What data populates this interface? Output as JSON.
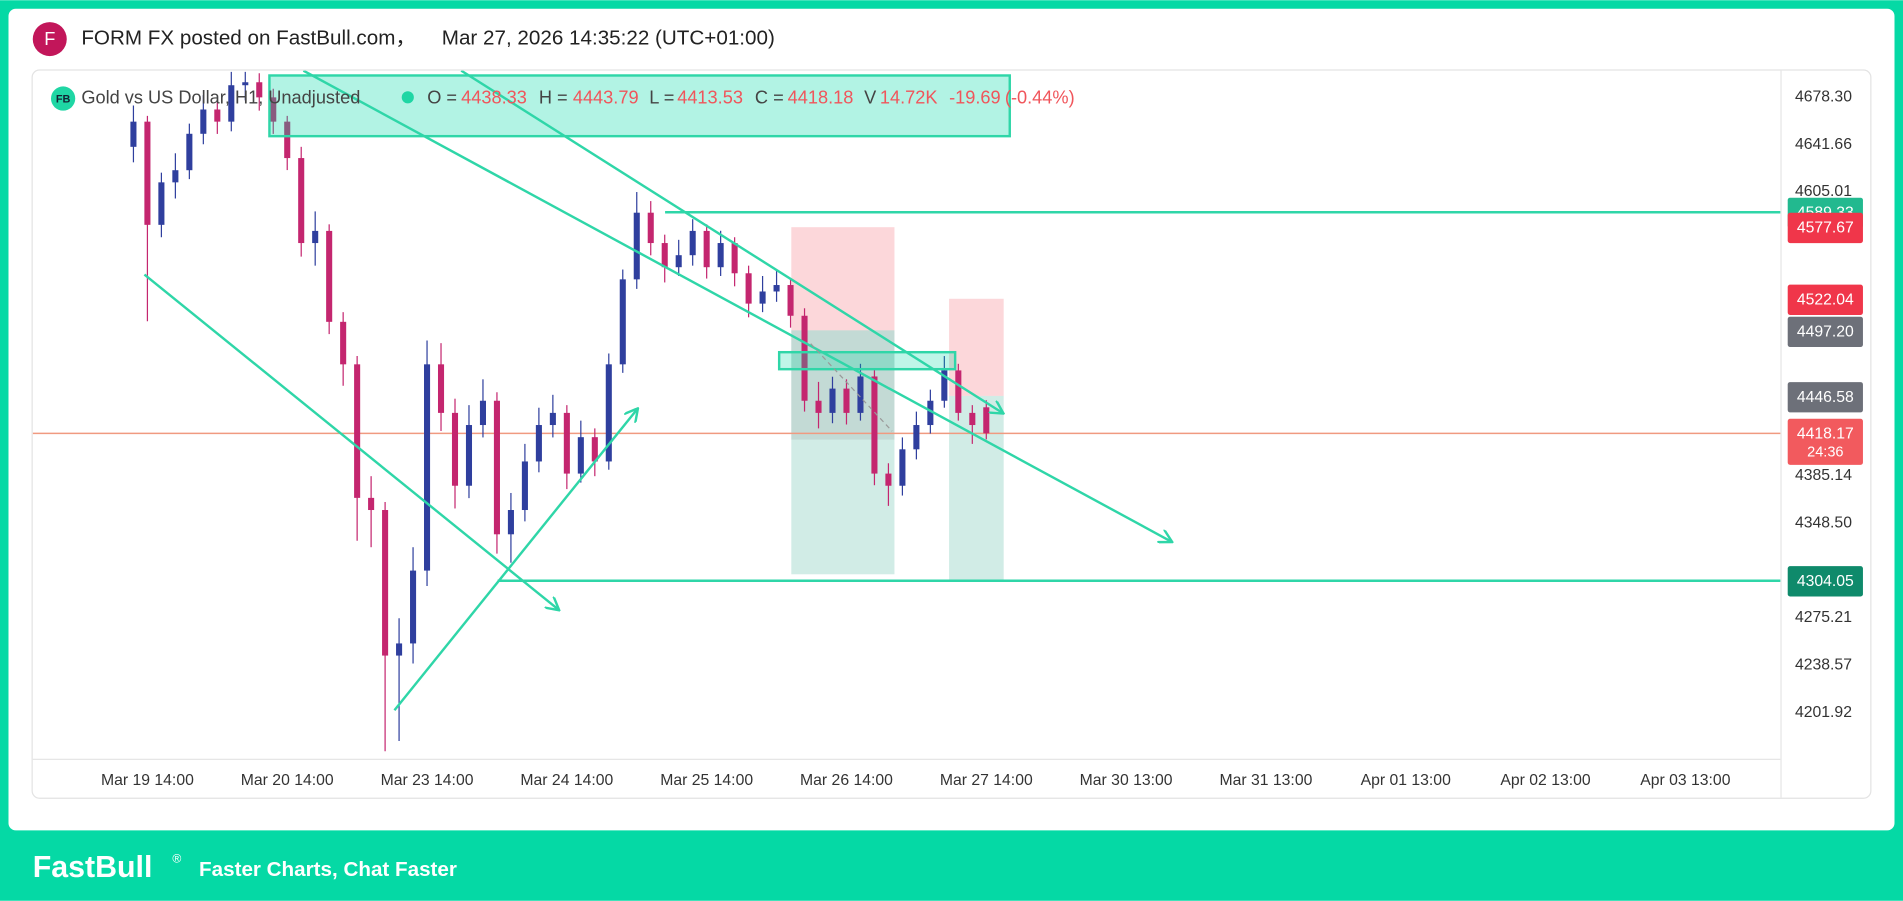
{
  "header": {
    "avatar": "F",
    "author_text": "FORM FX posted on FastBull.com，",
    "timestamp": "Mar 27, 2026 14:35:22 (UTC+01:00)"
  },
  "chart_data": {
    "type": "candlestick",
    "legend": {
      "logo": "FB",
      "symbol": "Gold vs US Dollar, H1, Unadjusted",
      "o_label": "O =",
      "open": 4438.33,
      "h_label": "H =",
      "high": 4443.79,
      "l_label": "L =",
      "low": 4413.53,
      "c_label": "C =",
      "close": 4418.18,
      "v_label": "V",
      "volume": "14.72K",
      "change": -19.69,
      "change_pct": "(-0.44%)"
    },
    "up_color": "#2f3f9e",
    "down_color": "#c4266f",
    "x": [
      -0.1,
      0,
      0.1,
      0.2,
      0.3,
      0.4,
      0.5,
      0.6,
      0.7,
      0.8,
      0.9,
      1,
      1.1,
      1.2,
      1.3,
      1.4,
      1.5,
      1.6,
      1.7,
      1.8,
      1.9,
      2,
      2.1,
      2.2,
      2.3,
      2.4,
      2.5,
      2.6,
      2.7,
      2.8,
      2.9,
      3,
      3.1,
      3.2,
      3.3,
      3.4,
      3.5,
      3.6,
      3.7,
      3.8,
      3.9,
      4,
      4.1,
      4.2,
      4.3,
      4.4,
      4.5,
      4.6,
      4.7,
      4.8,
      4.9,
      5,
      5.1,
      5.2,
      5.3,
      5.4,
      5.5,
      5.6,
      5.7,
      5.8,
      5.9,
      6
    ],
    "open": [
      4640,
      4659.5,
      4579.6,
      4612.5,
      4621.9,
      4650.1,
      4668.9,
      4659.5,
      4687.7,
      4690,
      4678.3,
      4659.5,
      4631.3,
      4565.5,
      4574.9,
      4504.5,
      4471.6,
      4368.2,
      4358.8,
      4246.1,
      4255.5,
      4311.9,
      4471.6,
      4434,
      4377.6,
      4424.6,
      4443.4,
      4340,
      4358.8,
      4396.4,
      4424.6,
      4434,
      4387,
      4415.2,
      4396.4,
      4471.6,
      4537.4,
      4589,
      4565.5,
      4546.8,
      4556.1,
      4574.9,
      4546.8,
      4565.5,
      4542.1,
      4518.6,
      4528,
      4533,
      4509.2,
      4443.4,
      4434,
      4452.8,
      4434,
      4462.2,
      4387,
      4377.6,
      4405.8,
      4424.6,
      4443.4,
      4466.9,
      4434,
      4438.33
    ],
    "high": [
      4672,
      4664,
      4620,
      4635,
      4658,
      4680,
      4675,
      4698,
      4698,
      4697,
      4685,
      4664,
      4640,
      4590,
      4580,
      4512,
      4478,
      4385,
      4365,
      4275,
      4330,
      4490,
      4488,
      4445,
      4440,
      4460,
      4450,
      4372,
      4410,
      4438,
      4448,
      4440,
      4428,
      4422,
      4480,
      4545,
      4605,
      4598,
      4572,
      4568,
      4584,
      4580,
      4575,
      4570,
      4548,
      4540,
      4545,
      4538,
      4515,
      4458,
      4462,
      4460,
      4472,
      4468,
      4395,
      4415,
      4435,
      4452,
      4478,
      4472,
      4440,
      4443.79
    ],
    "low": [
      4628,
      4505,
      4570,
      4600,
      4615,
      4642,
      4650,
      4652,
      4676,
      4668,
      4650,
      4622,
      4555,
      4548,
      4495,
      4455,
      4335,
      4330,
      4172,
      4180,
      4240,
      4300,
      4420,
      4360,
      4368,
      4415,
      4325,
      4318,
      4350,
      4388,
      4415,
      4375,
      4380,
      4385,
      4390,
      4465,
      4530,
      4556,
      4535,
      4540,
      4548,
      4538,
      4540,
      4532,
      4508,
      4512,
      4520,
      4500,
      4435,
      4422,
      4426,
      4425,
      4428,
      4378,
      4362,
      4370,
      4398,
      4418,
      4438,
      4428,
      4410,
      4413.53
    ],
    "close": [
      4659.5,
      4579.6,
      4612.5,
      4621.9,
      4650.1,
      4668.9,
      4659.5,
      4687.7,
      4690,
      4678.3,
      4659.5,
      4631.3,
      4565.5,
      4574.9,
      4504.5,
      4471.6,
      4368.2,
      4358.8,
      4246.1,
      4255.5,
      4311.9,
      4471.6,
      4434,
      4377.6,
      4424.6,
      4443.4,
      4340,
      4358.8,
      4396.4,
      4424.6,
      4434,
      4387,
      4415.2,
      4396.4,
      4471.6,
      4537.4,
      4589,
      4565.5,
      4546.8,
      4556.1,
      4574.9,
      4546.8,
      4565.5,
      4542.1,
      4518.6,
      4528,
      4533,
      4509.2,
      4443.4,
      4434,
      4452.8,
      4434,
      4462.2,
      4387,
      4377.6,
      4405.8,
      4424.6,
      4443.4,
      4466.9,
      4434,
      4424.6,
      4418.18
    ],
    "xlim": [
      -0.82,
      11.68
    ],
    "xticks": [
      {
        "value": 0,
        "label": "Mar 19 14:00"
      },
      {
        "value": 1,
        "label": "Mar 20 14:00"
      },
      {
        "value": 2,
        "label": "Mar 23 14:00"
      },
      {
        "value": 3,
        "label": "Mar 24 14:00"
      },
      {
        "value": 4,
        "label": "Mar 25 14:00"
      },
      {
        "value": 5,
        "label": "Mar 26 14:00"
      },
      {
        "value": 6,
        "label": "Mar 27 14:00"
      },
      {
        "value": 7,
        "label": "Mar 30 13:00"
      },
      {
        "value": 8,
        "label": "Mar 31 13:00"
      },
      {
        "value": 9,
        "label": "Apr 01 13:00"
      },
      {
        "value": 10,
        "label": "Apr 02 13:00"
      },
      {
        "value": 11,
        "label": "Apr 03 13:00"
      }
    ],
    "ylim": [
      4166.2,
      4699.0
    ],
    "yticks": [
      {
        "value": 4678.3,
        "label": "4678.30"
      },
      4641.66,
      4605.01,
      4385.14,
      {
        "value": 4348.5,
        "label": "4348.50"
      },
      4275.21,
      4238.57,
      4201.92
    ],
    "price_labels": [
      {
        "value": 4589.33,
        "color": "#22b98f"
      },
      {
        "value": 4577.67,
        "color": "#f0364a"
      },
      {
        "value": 4522.04,
        "color": "#f0364a"
      },
      {
        "value": 4497.2,
        "label": "4497.20",
        "color": "#6d7079"
      },
      {
        "value": 4446.58,
        "color": "#6d7079"
      },
      {
        "value": 4418.17,
        "color": "#f25a5e",
        "countdown": "24:36"
      },
      {
        "value": 4304.05,
        "color": "#0f8a6b"
      }
    ],
    "last_price_color": "#f09a80",
    "level_color": "#2fd6a8"
  },
  "footer": {
    "brand": "FastBull",
    "trademark": "®",
    "tagline": "Faster Charts, Chat Faster"
  }
}
